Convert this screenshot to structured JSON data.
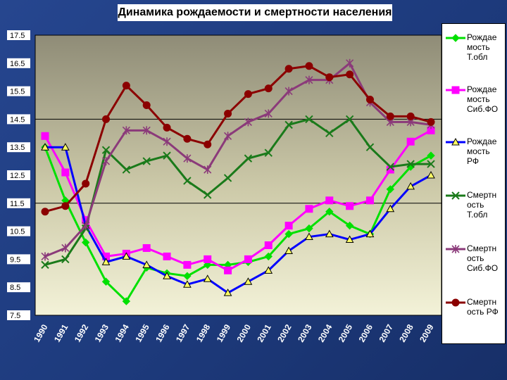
{
  "chart_data": {
    "type": "line",
    "title": "Динамика рождаемости и смертности населения",
    "categories": [
      "1990",
      "1991",
      "1992",
      "1993",
      "1994",
      "1995",
      "1996",
      "1997",
      "1998",
      "1999",
      "2000",
      "2001",
      "2002",
      "2003",
      "2004",
      "2005",
      "2006",
      "2007",
      "2008",
      "2009"
    ],
    "yticks": [
      "17.5",
      "16.5",
      "15.5",
      "14.5",
      "13.5",
      "12.5",
      "11.5",
      "10.5",
      "9.5",
      "8.5",
      "7.5"
    ],
    "ylim": [
      7.5,
      17.5
    ],
    "reference_lines": [
      14.5,
      11.5
    ],
    "legend_position": "right",
    "series": [
      {
        "name": "Рождае\nмость\nТ.обл",
        "color": "#00e000",
        "marker": "diamond",
        "values": [
          13.5,
          11.6,
          10.1,
          8.7,
          8.0,
          9.2,
          9.0,
          8.9,
          9.3,
          9.3,
          9.4,
          9.6,
          10.4,
          10.6,
          11.2,
          10.7,
          10.4,
          12.0,
          12.8,
          13.2
        ]
      },
      {
        "name": "Рождае\nмость\nСиб.ФО",
        "color": "#ff00ff",
        "marker": "square",
        "values": [
          13.9,
          12.6,
          10.9,
          9.6,
          9.7,
          9.9,
          9.6,
          9.3,
          9.5,
          9.1,
          9.5,
          10.0,
          10.7,
          11.3,
          11.6,
          11.4,
          11.6,
          12.7,
          13.7,
          14.1
        ]
      },
      {
        "name": "Рождае\nмость\nРФ",
        "color": "#0000ff",
        "marker": "triangle",
        "values": [
          13.5,
          13.5,
          10.7,
          9.4,
          9.6,
          9.3,
          8.9,
          8.6,
          8.8,
          8.3,
          8.7,
          9.1,
          9.8,
          10.3,
          10.4,
          10.2,
          10.4,
          11.3,
          12.1,
          12.5
        ]
      },
      {
        "name": "Смертн\nость\nТ.обл",
        "color": "#1a7a1a",
        "marker": "x",
        "values": [
          9.3,
          9.5,
          10.6,
          13.4,
          12.7,
          13.0,
          13.2,
          12.3,
          11.8,
          12.4,
          13.1,
          13.3,
          14.3,
          14.5,
          14.0,
          14.5,
          13.5,
          12.8,
          12.9,
          12.9
        ]
      },
      {
        "name": "Смертн\nость\nСиб.ФО",
        "color": "#8b3a7a",
        "marker": "star",
        "values": [
          9.6,
          9.9,
          10.7,
          13.0,
          14.1,
          14.1,
          13.7,
          13.1,
          12.7,
          13.9,
          14.4,
          14.7,
          15.5,
          15.9,
          15.9,
          16.5,
          15.1,
          14.4,
          14.4,
          14.3
        ]
      },
      {
        "name": "Смертн\nость РФ",
        "color": "#8b0000",
        "marker": "circle",
        "values": [
          11.2,
          11.4,
          12.2,
          14.5,
          15.7,
          15.0,
          14.2,
          13.8,
          13.6,
          14.7,
          15.4,
          15.6,
          16.3,
          16.4,
          16.0,
          16.1,
          15.2,
          14.6,
          14.6,
          14.4
        ]
      }
    ]
  },
  "colors": {
    "background": "#1f3c80",
    "plot_gradient_top": "#8f8c77",
    "plot_gradient_bottom": "#f2f1d6"
  }
}
